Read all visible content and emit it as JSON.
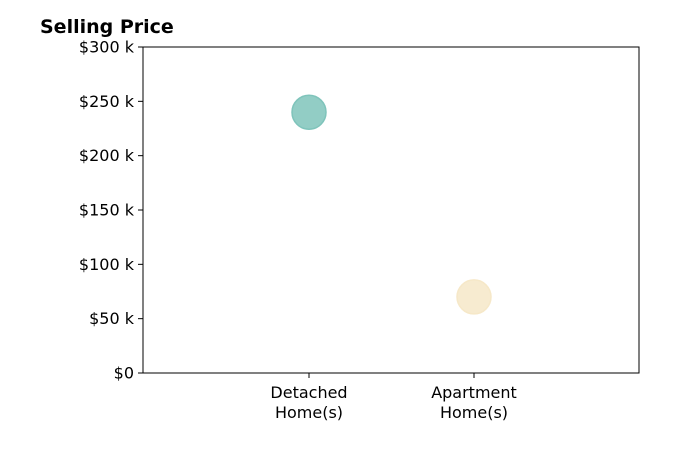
{
  "chart_data": {
    "type": "scatter",
    "title": "Selling Price",
    "xlabel": "",
    "ylabel": "",
    "categories": [
      "Detached\nHome(s)",
      "Apartment\nHome(s)"
    ],
    "ylim": [
      0,
      300
    ],
    "yticks": [
      {
        "value": 0,
        "label": "$0"
      },
      {
        "value": 50,
        "label": "$50 k"
      },
      {
        "value": 100,
        "label": "$100 k"
      },
      {
        "value": 150,
        "label": "$150 k"
      },
      {
        "value": 200,
        "label": "$200 k"
      },
      {
        "value": 250,
        "label": "$250 k"
      },
      {
        "value": 300,
        "label": "$300 k"
      }
    ],
    "points": [
      {
        "category": "Detached\nHome(s)",
        "value": 240,
        "color": "#7fc4bb"
      },
      {
        "category": "Apartment\nHome(s)",
        "value": 70,
        "color": "#f6e8c8"
      }
    ],
    "grid": false
  }
}
